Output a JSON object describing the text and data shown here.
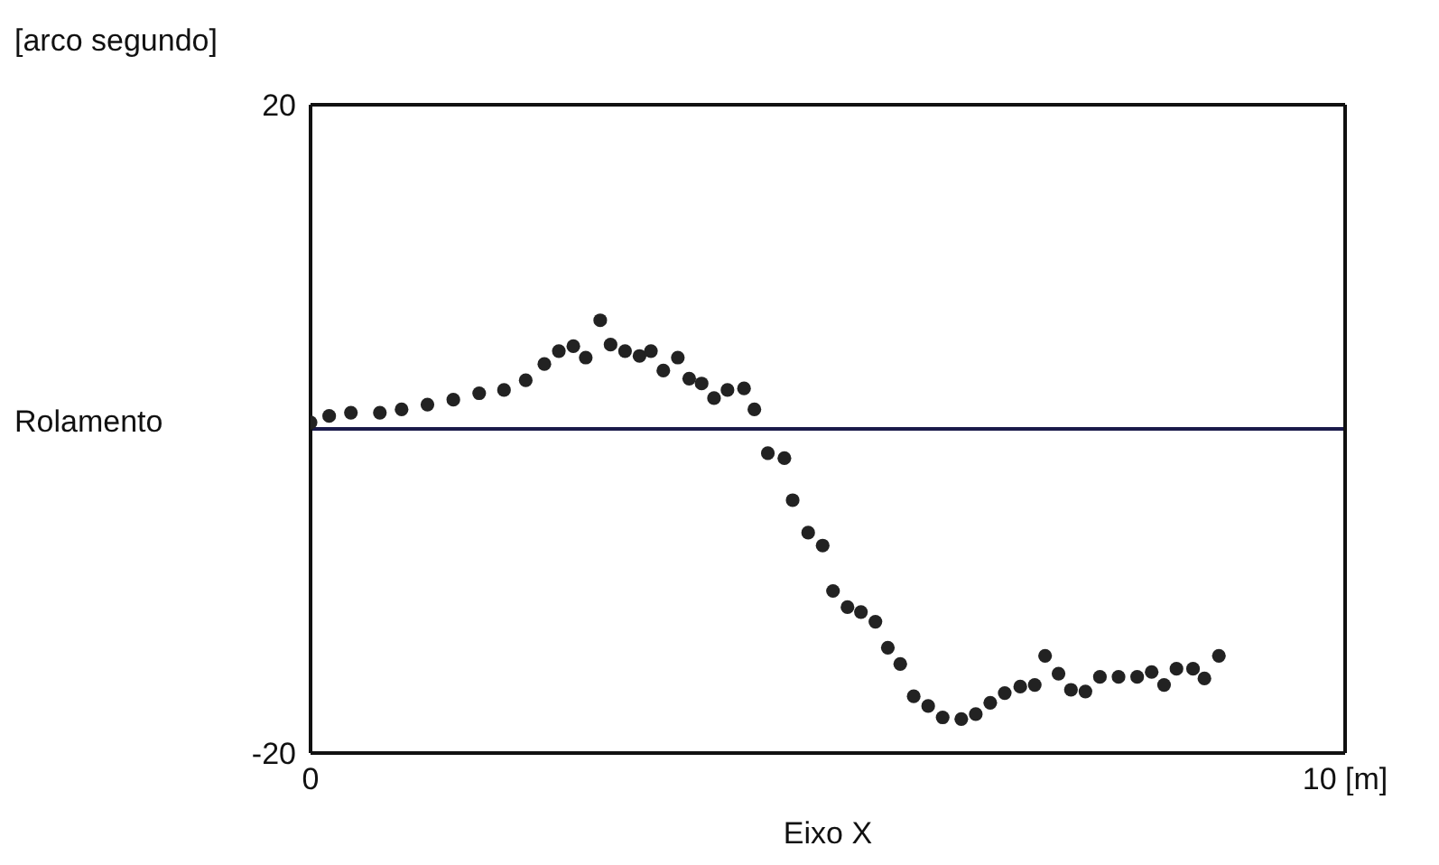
{
  "chart_data": {
    "type": "scatter",
    "ylabel": "Rolamento",
    "xlabel": "Eixo X",
    "annotations": [
      "[arco segundo]"
    ],
    "x": [
      0,
      0.18,
      0.39,
      0.67,
      0.88,
      1.13,
      1.38,
      1.63,
      1.87,
      2.08,
      2.26,
      2.4,
      2.54,
      2.66,
      2.8,
      2.9,
      3.04,
      3.18,
      3.29,
      3.41,
      3.55,
      3.66,
      3.78,
      3.9,
      4.03,
      4.19,
      4.29,
      4.42,
      4.58,
      4.66,
      4.81,
      4.95,
      5.05,
      5.19,
      5.32,
      5.46,
      5.58,
      5.7,
      5.83,
      5.97,
      6.11,
      6.29,
      6.43,
      6.57,
      6.71,
      6.86,
      7,
      7.1,
      7.23,
      7.35,
      7.49,
      7.63,
      7.81,
      7.99,
      8.13,
      8.25,
      8.37,
      8.53,
      8.64,
      8.78
    ],
    "values": [
      0.4,
      0.8,
      1,
      1,
      1.2,
      1.5,
      1.8,
      2.2,
      2.4,
      3,
      4,
      4.8,
      5.1,
      4.4,
      6.7,
      5.2,
      4.8,
      4.5,
      4.8,
      3.6,
      4.4,
      3.1,
      2.8,
      1.9,
      2.4,
      2.5,
      1.2,
      -1.5,
      -1.8,
      -4.4,
      -6.4,
      -7.2,
      -10,
      -11,
      -11.3,
      -11.9,
      -13.5,
      -14.5,
      -16.5,
      -17.1,
      -17.8,
      -17.9,
      -17.6,
      -16.9,
      -16.3,
      -15.9,
      -15.8,
      -14,
      -15.1,
      -16.1,
      -16.2,
      -15.3,
      -15.3,
      -15.3,
      -15,
      -15.8,
      -14.8,
      -14.8,
      -15.4,
      -14
    ],
    "color": "#222222",
    "marker": "circle",
    "xlim": [
      0,
      10
    ],
    "xticks": [
      0,
      {
        "value": 10,
        "label": "10 [m]"
      }
    ],
    "ylim": [
      -20,
      20
    ],
    "yticks": [
      -20,
      20
    ],
    "ref_lines": [
      {
        "axis": "y",
        "value": 0,
        "label": null,
        "color": "#1a1a4a"
      }
    ]
  }
}
